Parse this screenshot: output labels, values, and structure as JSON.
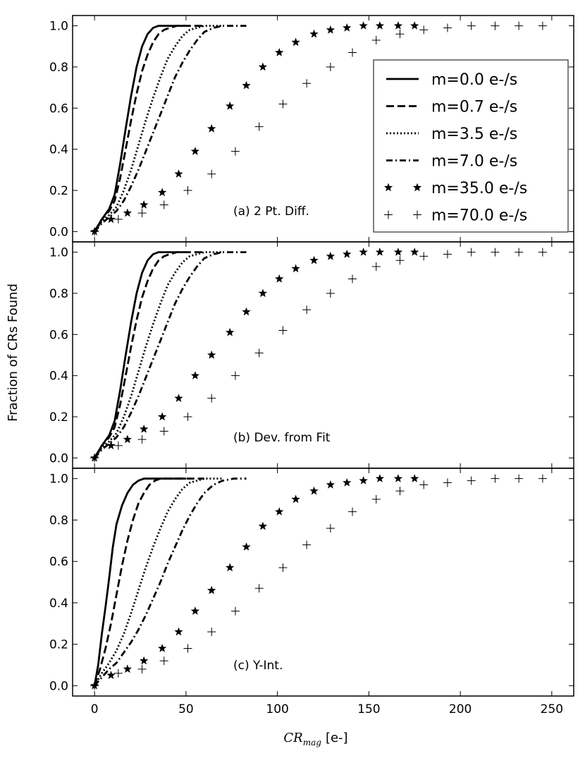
{
  "chart_data": {
    "type": "line",
    "ylabel": "Fraction of CRs Found",
    "xlabel_main": "CR",
    "xlabel_sub": "mag",
    "xlabel_unit": "[e-]",
    "xlim": [
      -12,
      262
    ],
    "ylim": [
      -0.05,
      1.05
    ],
    "x_ticks": [
      0,
      50,
      100,
      150,
      200,
      250
    ],
    "x_tick_labels": [
      "0",
      "50",
      "100",
      "150",
      "200",
      "250"
    ],
    "y_ticks": [
      0.0,
      0.2,
      0.4,
      0.6,
      0.8,
      1.0
    ],
    "y_tick_labels": [
      "0.0",
      "0.2",
      "0.4",
      "0.6",
      "0.8",
      "1.0"
    ],
    "legend": [
      {
        "label": "m=0.0 e-/s",
        "style": "solid"
      },
      {
        "label": "m=0.7 e-/s",
        "style": "dashed"
      },
      {
        "label": "m=3.5 e-/s",
        "style": "dotted"
      },
      {
        "label": "m=7.0 e-/s",
        "style": "dashdot"
      },
      {
        "label": "m=35.0 e-/s",
        "style": "star"
      },
      {
        "label": "m=70.0 e-/s",
        "style": "plus"
      }
    ],
    "panels": [
      {
        "label": "(a) 2 Pt. Diff.",
        "series": [
          {
            "name": "m=0.0 e-/s",
            "style": "solid",
            "x": [
              0,
              4,
              8,
              11,
              14,
              17,
              20,
              23,
              26,
              29,
              32,
              35,
              38,
              42,
              46,
              50
            ],
            "y": [
              0,
              0.06,
              0.11,
              0.18,
              0.33,
              0.5,
              0.66,
              0.8,
              0.9,
              0.96,
              0.99,
              1,
              1,
              1,
              1,
              1
            ]
          },
          {
            "name": "m=0.7 e-/s",
            "style": "dashed",
            "x": [
              0,
              4,
              8,
              11,
              14,
              17,
              20,
              23,
              26,
              29,
              32,
              35,
              38,
              41,
              45,
              49,
              54,
              60
            ],
            "y": [
              0,
              0.06,
              0.1,
              0.15,
              0.26,
              0.4,
              0.54,
              0.67,
              0.78,
              0.86,
              0.92,
              0.96,
              0.98,
              0.99,
              1,
              1,
              1,
              1
            ]
          },
          {
            "name": "m=3.5 e-/s",
            "style": "dotted",
            "x": [
              0,
              4,
              8,
              12,
              16,
              20,
              24,
              28,
              32,
              36,
              40,
              44,
              48,
              52,
              56,
              60,
              65,
              70
            ],
            "y": [
              0,
              0.05,
              0.08,
              0.12,
              0.2,
              0.3,
              0.42,
              0.54,
              0.65,
              0.75,
              0.84,
              0.9,
              0.95,
              0.98,
              0.99,
              1,
              1,
              1
            ]
          },
          {
            "name": "m=7.0 e-/s",
            "style": "dashdot",
            "x": [
              0,
              4,
              8,
              12,
              16,
              20,
              24,
              28,
              32,
              36,
              40,
              44,
              48,
              52,
              56,
              60,
              65,
              70,
              76,
              83
            ],
            "y": [
              0,
              0.04,
              0.07,
              0.1,
              0.15,
              0.22,
              0.3,
              0.39,
              0.48,
              0.57,
              0.66,
              0.75,
              0.82,
              0.88,
              0.93,
              0.97,
              0.99,
              1,
              1,
              1
            ]
          },
          {
            "name": "m=35.0 e-/s",
            "style": "star",
            "x": [
              0,
              9,
              18,
              27,
              37,
              46,
              55,
              64,
              74,
              83,
              92,
              101,
              110,
              120,
              129,
              138,
              147,
              156,
              166,
              175
            ],
            "y": [
              0,
              0.06,
              0.09,
              0.13,
              0.19,
              0.28,
              0.39,
              0.5,
              0.61,
              0.71,
              0.8,
              0.87,
              0.92,
              0.96,
              0.98,
              0.99,
              1,
              1,
              1,
              1
            ]
          },
          {
            "name": "m=70.0 e-/s",
            "style": "plus",
            "x": [
              0,
              13,
              26,
              38,
              51,
              64,
              77,
              90,
              103,
              116,
              129,
              141,
              154,
              167,
              180,
              193,
              206,
              219,
              232,
              245
            ],
            "y": [
              0,
              0.06,
              0.09,
              0.13,
              0.2,
              0.28,
              0.39,
              0.51,
              0.62,
              0.72,
              0.8,
              0.87,
              0.93,
              0.96,
              0.98,
              0.99,
              1,
              1,
              1,
              1
            ]
          }
        ]
      },
      {
        "label": "(b) Dev. from Fit",
        "series": [
          {
            "name": "m=0.0 e-/s",
            "style": "solid",
            "x": [
              0,
              4,
              8,
              11,
              14,
              17,
              20,
              23,
              26,
              29,
              32,
              35,
              38,
              42,
              46,
              50
            ],
            "y": [
              0,
              0.06,
              0.11,
              0.18,
              0.33,
              0.5,
              0.66,
              0.8,
              0.9,
              0.96,
              0.99,
              1,
              1,
              1,
              1,
              1
            ]
          },
          {
            "name": "m=0.7 e-/s",
            "style": "dashed",
            "x": [
              0,
              4,
              8,
              11,
              14,
              17,
              20,
              23,
              26,
              29,
              32,
              35,
              38,
              41,
              45,
              49,
              54,
              60
            ],
            "y": [
              0,
              0.06,
              0.1,
              0.15,
              0.26,
              0.4,
              0.54,
              0.67,
              0.78,
              0.86,
              0.92,
              0.96,
              0.98,
              0.99,
              1,
              1,
              1,
              1
            ]
          },
          {
            "name": "m=3.5 e-/s",
            "style": "dotted",
            "x": [
              0,
              4,
              8,
              12,
              16,
              20,
              24,
              28,
              32,
              36,
              40,
              44,
              48,
              52,
              56,
              60,
              65,
              70
            ],
            "y": [
              0,
              0.05,
              0.08,
              0.12,
              0.2,
              0.3,
              0.42,
              0.54,
              0.65,
              0.75,
              0.84,
              0.9,
              0.95,
              0.98,
              0.99,
              1,
              1,
              1
            ]
          },
          {
            "name": "m=7.0 e-/s",
            "style": "dashdot",
            "x": [
              0,
              4,
              8,
              12,
              16,
              20,
              24,
              28,
              32,
              36,
              40,
              44,
              48,
              52,
              56,
              60,
              65,
              70,
              76,
              83
            ],
            "y": [
              0,
              0.04,
              0.07,
              0.1,
              0.15,
              0.22,
              0.3,
              0.39,
              0.48,
              0.57,
              0.66,
              0.75,
              0.82,
              0.88,
              0.93,
              0.97,
              0.99,
              1,
              1,
              1
            ]
          },
          {
            "name": "m=35.0 e-/s",
            "style": "star",
            "x": [
              0,
              9,
              18,
              27,
              37,
              46,
              55,
              64,
              74,
              83,
              92,
              101,
              110,
              120,
              129,
              138,
              147,
              156,
              166,
              175
            ],
            "y": [
              0,
              0.06,
              0.09,
              0.14,
              0.2,
              0.29,
              0.4,
              0.5,
              0.61,
              0.71,
              0.8,
              0.87,
              0.92,
              0.96,
              0.98,
              0.99,
              1,
              1,
              1,
              1
            ]
          },
          {
            "name": "m=70.0 e-/s",
            "style": "plus",
            "x": [
              0,
              13,
              26,
              38,
              51,
              64,
              77,
              90,
              103,
              116,
              129,
              141,
              154,
              167,
              180,
              193,
              206,
              219,
              232,
              245
            ],
            "y": [
              0,
              0.06,
              0.09,
              0.13,
              0.2,
              0.29,
              0.4,
              0.51,
              0.62,
              0.72,
              0.8,
              0.87,
              0.93,
              0.96,
              0.98,
              0.99,
              1,
              1,
              1,
              1
            ]
          }
        ]
      },
      {
        "label": "(c) Y-Int.",
        "series": [
          {
            "name": "m=0.0 e-/s",
            "style": "solid",
            "x": [
              0,
              2,
              4,
              6,
              8,
              10,
              12,
              15,
              18,
              21,
              24,
              27,
              30,
              34,
              38,
              42,
              46,
              50
            ],
            "y": [
              0,
              0.1,
              0.25,
              0.38,
              0.52,
              0.67,
              0.78,
              0.87,
              0.93,
              0.97,
              0.99,
              1,
              1,
              1,
              1,
              1,
              1,
              1
            ]
          },
          {
            "name": "m=0.7 e-/s",
            "style": "dashed",
            "x": [
              0,
              3,
              6,
              9,
              12,
              15,
              18,
              21,
              24,
              27,
              30,
              33,
              36,
              40,
              45,
              50,
              55,
              60
            ],
            "y": [
              0,
              0.08,
              0.18,
              0.3,
              0.44,
              0.58,
              0.7,
              0.8,
              0.88,
              0.93,
              0.97,
              0.99,
              1,
              1,
              1,
              1,
              1,
              1
            ]
          },
          {
            "name": "m=3.5 e-/s",
            "style": "dotted",
            "x": [
              0,
              4,
              8,
              12,
              16,
              20,
              24,
              28,
              32,
              36,
              40,
              44,
              48,
              52,
              56,
              60,
              65,
              70
            ],
            "y": [
              0,
              0.06,
              0.11,
              0.17,
              0.25,
              0.35,
              0.46,
              0.57,
              0.67,
              0.76,
              0.84,
              0.9,
              0.95,
              0.98,
              0.99,
              1,
              1,
              1
            ]
          },
          {
            "name": "m=7.0 e-/s",
            "style": "dashdot",
            "x": [
              0,
              4,
              8,
              12,
              16,
              20,
              24,
              28,
              32,
              36,
              40,
              44,
              48,
              52,
              56,
              60,
              65,
              70,
              76,
              83
            ],
            "y": [
              0,
              0.04,
              0.08,
              0.11,
              0.16,
              0.21,
              0.27,
              0.34,
              0.42,
              0.5,
              0.59,
              0.67,
              0.75,
              0.82,
              0.88,
              0.93,
              0.97,
              0.99,
              1,
              1
            ]
          },
          {
            "name": "m=35.0 e-/s",
            "style": "star",
            "x": [
              0,
              9,
              18,
              27,
              37,
              46,
              55,
              64,
              74,
              83,
              92,
              101,
              110,
              120,
              129,
              138,
              147,
              156,
              166,
              175
            ],
            "y": [
              0,
              0.05,
              0.08,
              0.12,
              0.18,
              0.26,
              0.36,
              0.46,
              0.57,
              0.67,
              0.77,
              0.84,
              0.9,
              0.94,
              0.97,
              0.98,
              0.99,
              1,
              1,
              1
            ]
          },
          {
            "name": "m=70.0 e-/s",
            "style": "plus",
            "x": [
              0,
              13,
              26,
              38,
              51,
              64,
              77,
              90,
              103,
              116,
              129,
              141,
              154,
              167,
              180,
              193,
              206,
              219,
              232,
              245
            ],
            "y": [
              0,
              0.06,
              0.08,
              0.12,
              0.18,
              0.26,
              0.36,
              0.47,
              0.57,
              0.68,
              0.76,
              0.84,
              0.9,
              0.94,
              0.97,
              0.98,
              0.99,
              1,
              1,
              1
            ]
          }
        ]
      }
    ]
  }
}
